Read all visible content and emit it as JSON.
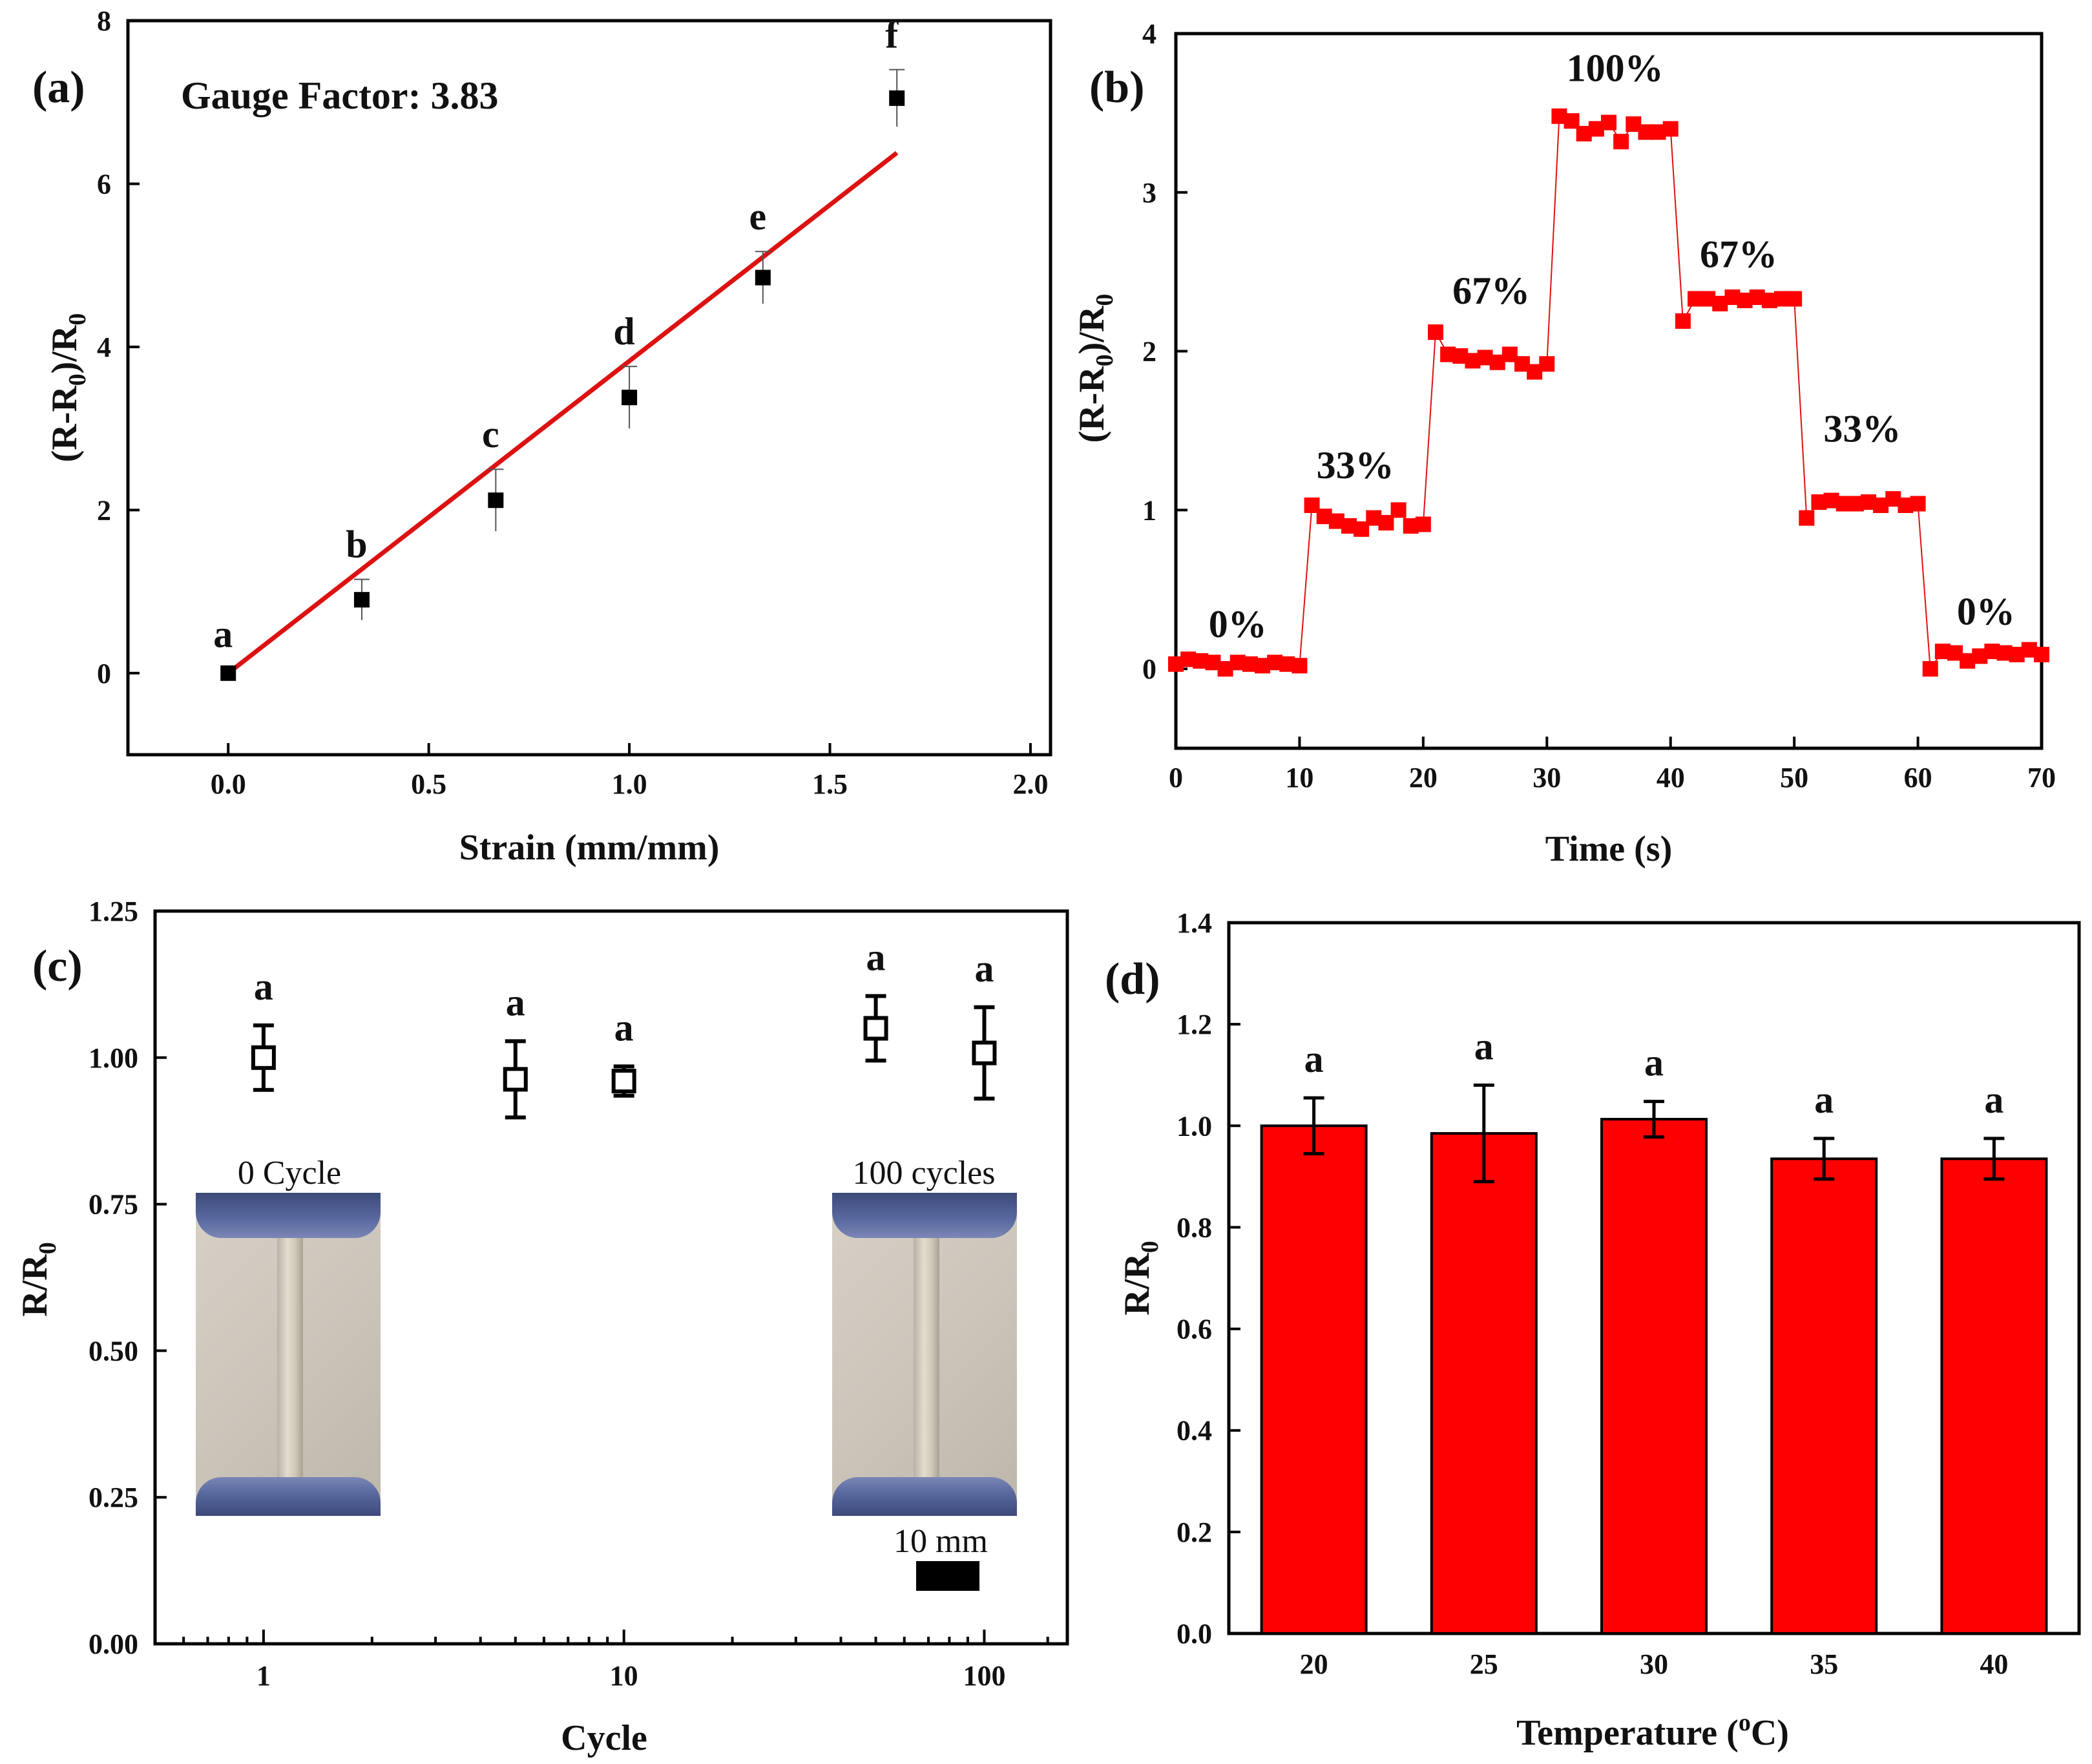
{
  "colors": {
    "red": "#ff0000",
    "line_red": "#dd1111",
    "black": "#000000"
  },
  "chart_data": [
    {
      "panel": "(a)",
      "type": "scatter",
      "title": "",
      "annotation": "Gauge Factor: 3.83",
      "xlabel": "Strain (mm/mm)",
      "ylabel_main": "(R-R",
      "ylabel_sub": "0",
      "ylabel_tail": ")/R",
      "xlim": [
        -0.25,
        2.05
      ],
      "ylim": [
        -1.0,
        8.0
      ],
      "xticks": [
        0.0,
        0.5,
        1.0,
        1.5,
        2.0
      ],
      "xtick_labels": [
        "0.0",
        "0.5",
        "1.0",
        "1.5",
        "2.0"
      ],
      "yticks": [
        0,
        2,
        4,
        6,
        8
      ],
      "ytick_labels": [
        "0",
        "2",
        "4",
        "6",
        "8"
      ],
      "points": [
        {
          "x": 0.0,
          "y": 0.0,
          "err": 0.05,
          "label": "a"
        },
        {
          "x": 0.333,
          "y": 0.9,
          "err": 0.25,
          "label": "b"
        },
        {
          "x": 0.667,
          "y": 2.12,
          "err": 0.38,
          "label": "c"
        },
        {
          "x": 1.0,
          "y": 3.38,
          "err": 0.38,
          "label": "d"
        },
        {
          "x": 1.333,
          "y": 4.85,
          "err": 0.32,
          "label": "e"
        },
        {
          "x": 1.667,
          "y": 7.05,
          "err": 0.35,
          "label": "f"
        }
      ],
      "fit": {
        "x0": 0.0,
        "y0": 0.0,
        "x1": 1.667,
        "y1": 6.38
      }
    },
    {
      "panel": "(b)",
      "type": "line",
      "xlabel": "Time (s)",
      "ylabel_main": "(R-R",
      "ylabel_sub": "0",
      "ylabel_tail": ")/R",
      "xlim": [
        0,
        70
      ],
      "ylim": [
        -0.5,
        4.0
      ],
      "xticks": [
        0,
        10,
        20,
        30,
        40,
        50,
        60,
        70
      ],
      "xtick_labels": [
        "0",
        "10",
        "20",
        "30",
        "40",
        "50",
        "60",
        "70"
      ],
      "yticks": [
        0,
        1,
        2,
        3,
        4
      ],
      "ytick_labels": [
        "0",
        "1",
        "2",
        "3",
        "4"
      ],
      "x": [
        0,
        1,
        2,
        3,
        4,
        5,
        6,
        7,
        8,
        9,
        10,
        11,
        12,
        13,
        14,
        15,
        16,
        17,
        18,
        19,
        20,
        21,
        22,
        23,
        24,
        25,
        26,
        27,
        28,
        29,
        30,
        31,
        32,
        33,
        34,
        35,
        36,
        37,
        38,
        39,
        40,
        41,
        42,
        43,
        44,
        45,
        46,
        47,
        48,
        49,
        50,
        51,
        52,
        53,
        54,
        55,
        56,
        57,
        58,
        59,
        60,
        61,
        62,
        63,
        64,
        65,
        66,
        67,
        68,
        69,
        70
      ],
      "y": [
        0.03,
        0.06,
        0.05,
        0.04,
        0.0,
        0.04,
        0.03,
        0.02,
        0.04,
        0.03,
        0.02,
        1.03,
        0.96,
        0.93,
        0.9,
        0.88,
        0.95,
        0.92,
        1.0,
        0.9,
        0.91,
        2.12,
        1.98,
        1.97,
        1.94,
        1.96,
        1.93,
        1.98,
        1.92,
        1.87,
        1.92,
        3.48,
        3.45,
        3.37,
        3.4,
        3.44,
        3.32,
        3.43,
        3.38,
        3.38,
        3.4,
        2.19,
        2.33,
        2.33,
        2.3,
        2.34,
        2.32,
        2.34,
        2.32,
        2.33,
        2.33,
        0.95,
        1.05,
        1.06,
        1.04,
        1.04,
        1.05,
        1.03,
        1.07,
        1.03,
        1.04,
        0.0,
        0.11,
        0.1,
        0.05,
        0.08,
        0.11,
        0.1,
        0.09,
        0.12,
        0.09
      ],
      "step_labels": [
        {
          "x": 5,
          "y": 0.2,
          "text": "0%"
        },
        {
          "x": 14.5,
          "y": 1.2,
          "text": "33%"
        },
        {
          "x": 25.5,
          "y": 2.3,
          "text": "67%"
        },
        {
          "x": 35.5,
          "y": 3.7,
          "text": "100%"
        },
        {
          "x": 45.5,
          "y": 2.53,
          "text": "67%"
        },
        {
          "x": 55.5,
          "y": 1.43,
          "text": "33%"
        },
        {
          "x": 65.5,
          "y": 0.28,
          "text": "0%"
        }
      ]
    },
    {
      "panel": "(c)",
      "type": "scatter",
      "xscale": "log",
      "xlabel": "Cycle",
      "ylabel_main": "R/R",
      "ylabel_sub": "0",
      "xlim": [
        0.5,
        170
      ],
      "ylim": [
        0.0,
        1.25
      ],
      "xticks": [
        1,
        10,
        100
      ],
      "xtick_labels": [
        "1",
        "10",
        "100"
      ],
      "yticks": [
        0.0,
        0.25,
        0.5,
        0.75,
        1.0,
        1.25
      ],
      "ytick_labels": [
        "0.00",
        "0.25",
        "0.50",
        "0.75",
        "1.00",
        "1.25"
      ],
      "points": [
        {
          "x": 1,
          "y": 1.0,
          "err": 0.055,
          "label": "a"
        },
        {
          "x": 5,
          "y": 0.963,
          "err": 0.065,
          "label": "a"
        },
        {
          "x": 10,
          "y": 0.96,
          "err": 0.025,
          "label": "a"
        },
        {
          "x": 50,
          "y": 1.05,
          "err": 0.055,
          "label": "a"
        },
        {
          "x": 100,
          "y": 1.008,
          "err": 0.078,
          "label": "a"
        }
      ],
      "inset_left_label": "0 Cycle",
      "inset_right_label": "100 cycles",
      "scale_label": "10 mm"
    },
    {
      "panel": "(d)",
      "type": "bar",
      "xlabel_main": "Temperature (",
      "xlabel_sup": "o",
      "xlabel_tail": "C)",
      "ylabel_main": "R/R",
      "ylabel_sub": "0",
      "categories": [
        "20",
        "25",
        "30",
        "35",
        "40"
      ],
      "values": [
        1.0,
        0.985,
        1.013,
        0.935,
        0.935
      ],
      "errors": [
        0.055,
        0.095,
        0.035,
        0.04,
        0.04
      ],
      "bar_labels": [
        "a",
        "a",
        "a",
        "a",
        "a"
      ],
      "ylim": [
        0.0,
        1.4
      ],
      "yticks": [
        0.0,
        0.2,
        0.4,
        0.6,
        0.8,
        1.0,
        1.2,
        1.4
      ],
      "ytick_labels": [
        "0.0",
        "0.2",
        "0.4",
        "0.6",
        "0.8",
        "1.0",
        "1.2",
        "1.4"
      ]
    }
  ]
}
